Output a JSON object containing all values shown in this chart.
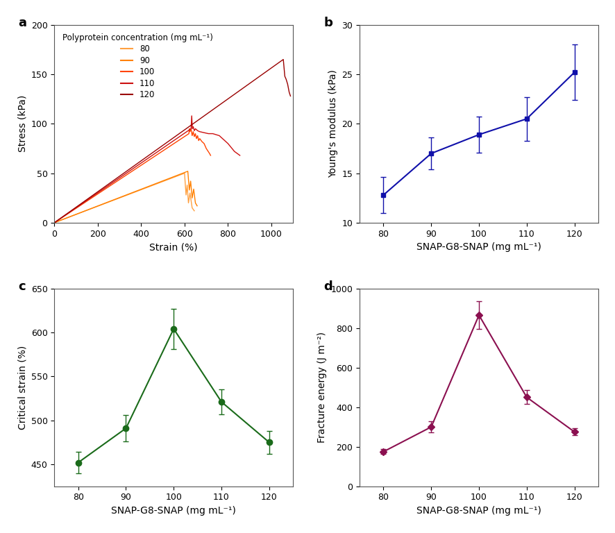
{
  "panel_a": {
    "title": "a",
    "xlabel": "Strain (%)",
    "ylabel": "Stress (kPa)",
    "xlim": [
      0,
      1100
    ],
    "ylim": [
      0,
      200
    ],
    "xticks": [
      0,
      200,
      400,
      600,
      800,
      1000
    ],
    "yticks": [
      0,
      50,
      100,
      150,
      200
    ],
    "legend_title": "Polyprotein concentration (mg mL⁻¹)",
    "concentrations": [
      "80",
      "90",
      "100",
      "110",
      "120"
    ],
    "colors": [
      "#FFA040",
      "#FF8000",
      "#FF4400",
      "#CC1010",
      "#990000"
    ]
  },
  "panel_b": {
    "title": "b",
    "xlabel": "SNAP-G8-SNAP (mg mL⁻¹)",
    "ylabel": "Young's modulus (kPa)",
    "xlim": [
      75,
      125
    ],
    "ylim": [
      10,
      30
    ],
    "xticks": [
      80,
      90,
      100,
      110,
      120
    ],
    "yticks": [
      10,
      15,
      20,
      25,
      30
    ],
    "color": "#1010AA",
    "x": [
      80,
      90,
      100,
      110,
      120
    ],
    "y": [
      12.8,
      17.0,
      18.9,
      20.5,
      25.2
    ],
    "yerr": [
      1.8,
      1.6,
      1.8,
      2.2,
      2.8
    ]
  },
  "panel_c": {
    "title": "c",
    "xlabel": "SNAP-G8-SNAP (mg mL⁻¹)",
    "ylabel": "Critical strain (%)",
    "xlim": [
      75,
      125
    ],
    "ylim": [
      425,
      650
    ],
    "xticks": [
      80,
      90,
      100,
      110,
      120
    ],
    "yticks": [
      450,
      500,
      550,
      600,
      650
    ],
    "color": "#1a6b1a",
    "x": [
      80,
      90,
      100,
      110,
      120
    ],
    "y": [
      452,
      491,
      604,
      521,
      475
    ],
    "yerr": [
      12,
      15,
      23,
      14,
      13
    ]
  },
  "panel_d": {
    "title": "d",
    "xlabel": "SNAP-G8-SNAP (mg mL⁻¹)",
    "ylabel": "Fracture energy (J m⁻²)",
    "xlim": [
      75,
      125
    ],
    "ylim": [
      0,
      1000
    ],
    "xticks": [
      80,
      90,
      100,
      110,
      120
    ],
    "yticks": [
      0,
      200,
      400,
      600,
      800,
      1000
    ],
    "color": "#8B1050",
    "x": [
      80,
      90,
      100,
      110,
      120
    ],
    "y": [
      175,
      300,
      865,
      450,
      275
    ],
    "yerr": [
      12,
      28,
      70,
      35,
      18
    ]
  }
}
